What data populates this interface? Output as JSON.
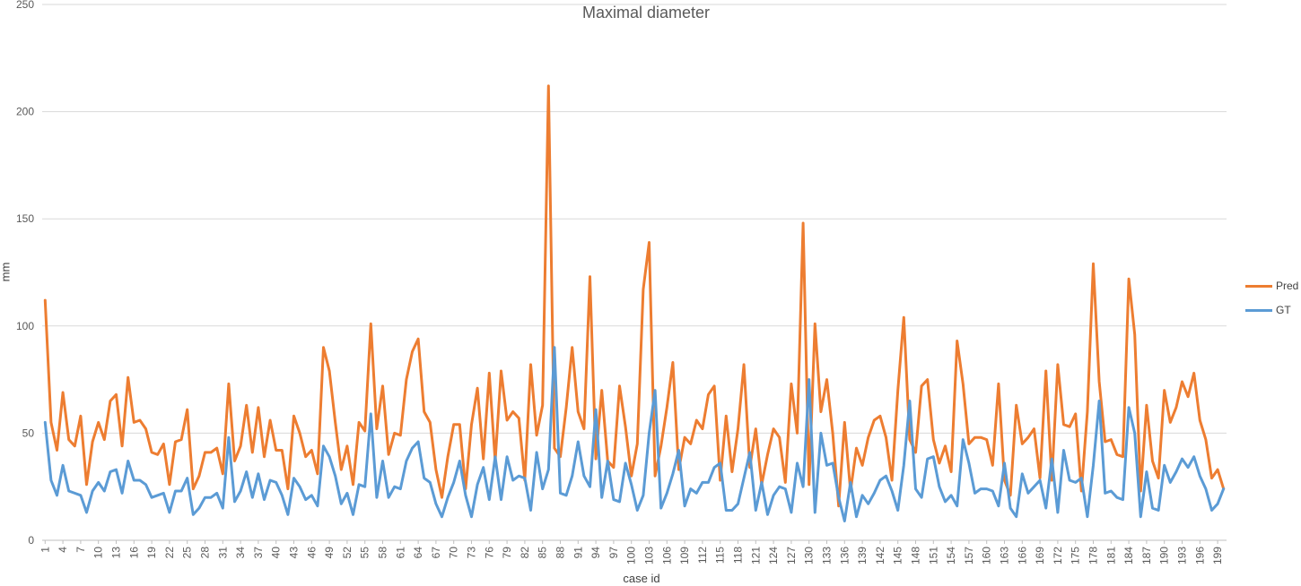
{
  "chart_data": {
    "type": "line",
    "title": "Maximal diameter",
    "xlabel": "case id",
    "ylabel": "mm",
    "ylim": [
      0,
      250
    ],
    "yticks": [
      0,
      50,
      100,
      150,
      200,
      250
    ],
    "x_start": 1,
    "x_end": 200,
    "x_tick_labels": [
      1,
      4,
      7,
      10,
      13,
      16,
      19,
      22,
      25,
      28,
      31,
      34,
      37,
      40,
      43,
      46,
      49,
      52,
      55,
      58,
      61,
      64,
      67,
      70,
      73,
      76,
      79,
      82,
      85,
      88,
      91,
      94,
      97,
      100,
      103,
      106,
      109,
      112,
      115,
      118,
      121,
      124,
      127,
      130,
      133,
      136,
      139,
      142,
      145,
      148,
      151,
      154,
      157,
      160,
      163,
      166,
      169,
      172,
      175,
      178,
      181,
      184,
      187,
      190,
      193,
      196,
      199
    ],
    "grid": "horizontal",
    "legend_position": "right",
    "series": [
      {
        "name": "Pred",
        "color": "#ED7D31",
        "values": [
          112,
          55,
          42,
          69,
          47,
          44,
          58,
          26,
          46,
          55,
          47,
          65,
          68,
          44,
          76,
          55,
          56,
          52,
          41,
          40,
          45,
          26,
          46,
          47,
          61,
          24,
          30,
          41,
          41,
          43,
          31,
          73,
          37,
          44,
          63,
          41,
          62,
          39,
          56,
          42,
          42,
          24,
          58,
          50,
          39,
          42,
          31,
          90,
          79,
          55,
          33,
          44,
          26,
          55,
          51,
          101,
          52,
          72,
          40,
          50,
          49,
          75,
          88,
          94,
          60,
          55,
          33,
          20,
          39,
          54,
          54,
          24,
          54,
          71,
          38,
          78,
          37,
          79,
          56,
          60,
          57,
          28,
          82,
          49,
          63,
          212,
          43,
          39,
          62,
          90,
          60,
          52,
          123,
          38,
          70,
          37,
          34,
          72,
          53,
          30,
          45,
          117,
          139,
          30,
          44,
          62,
          83,
          33,
          48,
          45,
          56,
          52,
          68,
          72,
          28,
          58,
          32,
          52,
          82,
          34,
          52,
          26,
          40,
          52,
          48,
          27,
          73,
          50,
          148,
          26,
          101,
          60,
          75,
          50,
          16,
          55,
          23,
          43,
          35,
          48,
          56,
          58,
          48,
          28,
          70,
          104,
          47,
          41,
          72,
          75,
          47,
          36,
          44,
          32,
          93,
          73,
          45,
          48,
          48,
          47,
          35,
          73,
          28,
          21,
          63,
          45,
          48,
          52,
          29,
          79,
          28,
          82,
          54,
          53,
          59,
          23,
          60,
          129,
          74,
          46,
          47,
          40,
          39,
          122,
          96,
          23,
          63,
          37,
          29,
          70,
          55,
          62,
          74,
          67,
          78,
          56,
          47,
          29,
          33,
          24
        ]
      },
      {
        "name": "GT",
        "color": "#5B9BD5",
        "values": [
          55,
          28,
          21,
          35,
          23,
          22,
          21,
          13,
          23,
          27,
          23,
          32,
          33,
          22,
          37,
          28,
          28,
          26,
          20,
          21,
          22,
          13,
          23,
          23,
          29,
          12,
          15,
          20,
          20,
          22,
          15,
          48,
          18,
          23,
          32,
          20,
          31,
          19,
          28,
          27,
          21,
          12,
          29,
          25,
          19,
          21,
          16,
          44,
          39,
          30,
          17,
          22,
          12,
          26,
          25,
          59,
          20,
          37,
          20,
          25,
          24,
          37,
          43,
          46,
          29,
          27,
          17,
          11,
          20,
          27,
          37,
          21,
          11,
          26,
          34,
          19,
          39,
          19,
          39,
          28,
          30,
          29,
          14,
          41,
          24,
          33,
          90,
          22,
          21,
          30,
          46,
          30,
          25,
          61,
          20,
          37,
          19,
          18,
          36,
          26,
          14,
          21,
          50,
          70,
          15,
          22,
          31,
          42,
          16,
          24,
          22,
          27,
          27,
          34,
          36,
          14,
          14,
          17,
          29,
          41,
          14,
          27,
          12,
          21,
          25,
          24,
          13,
          36,
          25,
          75,
          13,
          50,
          35,
          36,
          20,
          9,
          27,
          11,
          21,
          17,
          22,
          28,
          30,
          23,
          14,
          35,
          65,
          24,
          20,
          38,
          39,
          25,
          18,
          21,
          16,
          47,
          36,
          22,
          24,
          24,
          23,
          16,
          36,
          15,
          11,
          31,
          22,
          25,
          28,
          15,
          38,
          13,
          42,
          28,
          27,
          29,
          11,
          35,
          65,
          22,
          23,
          20,
          19,
          62,
          50,
          11,
          32,
          15,
          14,
          35,
          27,
          32,
          38,
          34,
          39,
          30,
          24,
          14,
          17,
          24
        ]
      }
    ]
  }
}
